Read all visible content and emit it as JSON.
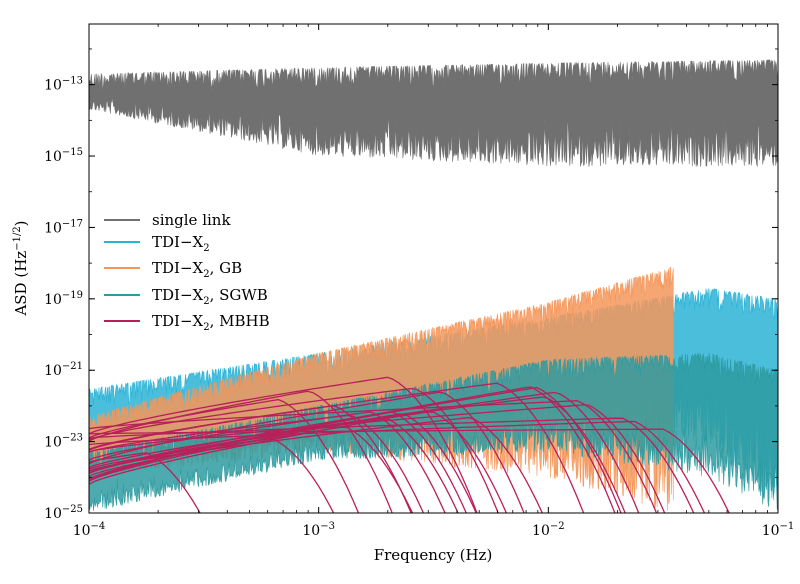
{
  "chart_data": {
    "type": "line",
    "xlabel": "Frequency (Hz)",
    "ylabel": "ASD (Hz",
    "ylabel_sup": "−1/2",
    "ylabel_close": ")",
    "xscale": "log",
    "yscale": "log",
    "xlim": [
      0.0001,
      0.1
    ],
    "ylim": [
      1e-25,
      5e-12
    ],
    "xticks": [
      {
        "value": 0.0001,
        "base": "10",
        "exp": "−4"
      },
      {
        "value": 0.001,
        "base": "10",
        "exp": "−3"
      },
      {
        "value": 0.01,
        "base": "10",
        "exp": "−2"
      },
      {
        "value": 0.1,
        "base": "10",
        "exp": "−1"
      }
    ],
    "yticks": [
      {
        "value": 1e-13,
        "base": "10",
        "exp": "−13"
      },
      {
        "value": 1e-15,
        "base": "10",
        "exp": "−15"
      },
      {
        "value": 1e-17,
        "base": "10",
        "exp": "−17"
      },
      {
        "value": 1e-19,
        "base": "10",
        "exp": "−19"
      },
      {
        "value": 1e-21,
        "base": "10",
        "exp": "−21"
      },
      {
        "value": 1e-23,
        "base": "10",
        "exp": "−23"
      },
      {
        "value": 1e-25,
        "base": "10",
        "exp": "−25"
      }
    ],
    "grid": false,
    "legend_position": "center-left",
    "series": [
      {
        "name": "single link",
        "color": "#707070",
        "x": [
          0.0001,
          0.001,
          0.01,
          0.1
        ],
        "upper": [
          2e-13,
          3e-13,
          4e-13,
          5e-13
        ],
        "lower": [
          2e-14,
          1e-15,
          5e-16,
          5e-16
        ]
      },
      {
        "name": "TDI−X",
        "sub": "2",
        "color": "#2bb3d6",
        "x": [
          0.0001,
          0.001,
          0.01,
          0.05,
          0.1
        ],
        "upper": [
          3e-22,
          3e-21,
          3e-20,
          2e-19,
          1e-19
        ],
        "lower": [
          2e-24,
          1e-23,
          5e-23,
          1e-23,
          1e-25
        ]
      },
      {
        "name": "TDI−X",
        "sub": "2",
        "suffix": ", GB",
        "color": "#f4965a",
        "x": [
          0.0001,
          0.001,
          0.01,
          0.035
        ],
        "upper": [
          5e-23,
          3e-21,
          8e-20,
          8e-19
        ],
        "lower": [
          1e-24,
          5e-24,
          1e-24,
          1e-25
        ]
      },
      {
        "name": "TDI−X",
        "sub": "2",
        "suffix": ", SGWB",
        "color": "#2e9ba0",
        "x": [
          0.0001,
          0.001,
          0.01,
          0.05,
          0.1
        ],
        "upper": [
          5e-24,
          1e-22,
          2e-21,
          3e-21,
          1e-21
        ],
        "lower": [
          1e-25,
          3e-24,
          5e-24,
          1e-24,
          1e-25
        ]
      },
      {
        "name": "TDI−X",
        "sub": "2",
        "suffix": ", MBHB",
        "color": "#b8205a",
        "x": [
          0.0001,
          0.0005,
          0.001,
          0.003,
          0.005,
          0.01,
          0.02,
          0.05,
          0.1
        ],
        "peak_max": [
          1e-22,
          1e-22,
          1e-21,
          1e-21,
          5e-22,
          3e-22,
          5e-23,
          1e-23,
          1e-23
        ]
      }
    ]
  }
}
